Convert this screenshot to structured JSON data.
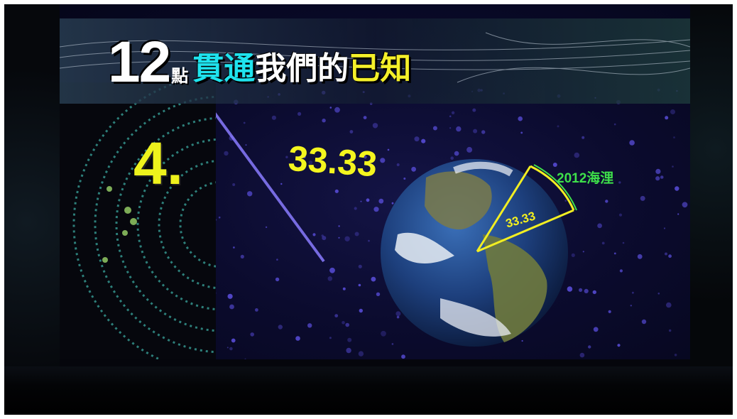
{
  "title": {
    "number": "12",
    "unit": "點",
    "part_cyan": "貫通",
    "part_white": "我們的",
    "part_yellow": "已知"
  },
  "item_number": "4.",
  "value_large": "33.33",
  "angle_label": "33.33",
  "distance_label": "2012海浬",
  "colors": {
    "title_cyan": "#1fe3ee",
    "title_yellow": "#f4f02a",
    "number_yellow": "#eef21c",
    "angle_yellow": "#f4f01e",
    "distance_green": "#3ee04a",
    "background": "#0b0b2e"
  }
}
